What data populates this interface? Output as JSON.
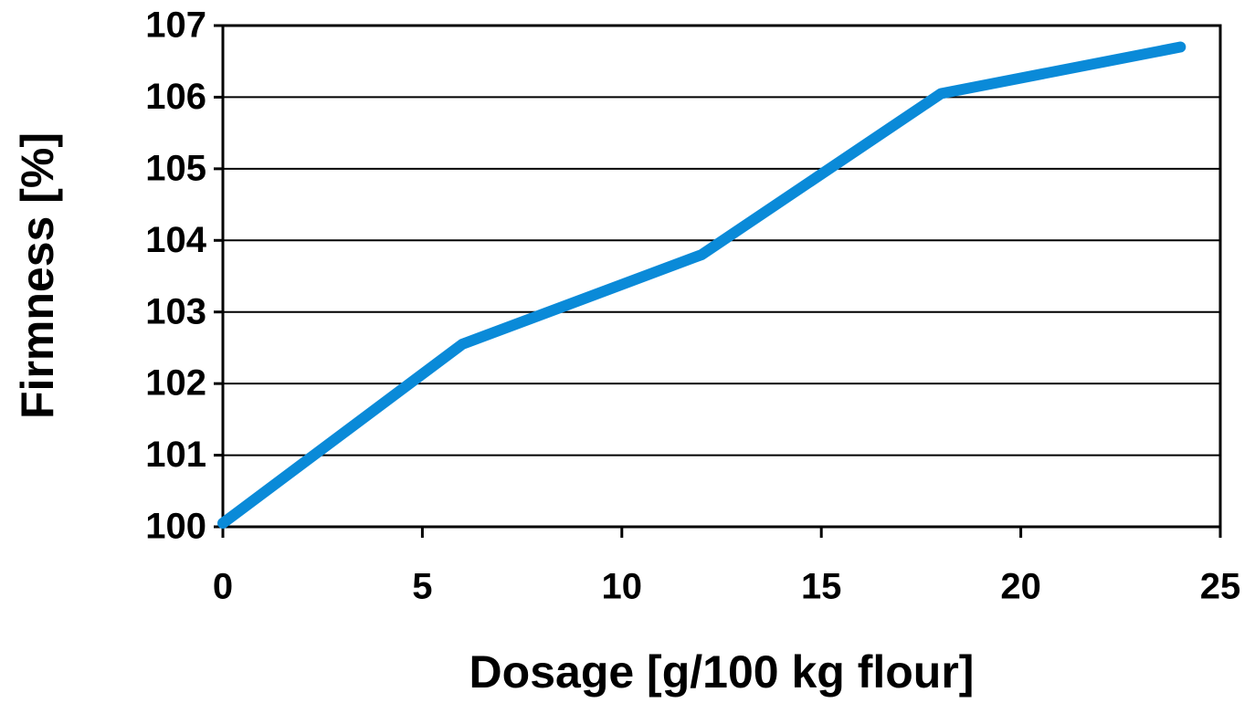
{
  "chart_data": {
    "type": "line",
    "x": [
      0,
      6,
      12,
      18,
      24
    ],
    "series": [
      {
        "name": null,
        "color": "#0a8ad8",
        "values": [
          100.05,
          102.55,
          103.8,
          106.05,
          106.7
        ]
      }
    ],
    "xlim": [
      0,
      25
    ],
    "xticks": [
      0,
      5,
      10,
      15,
      20,
      25
    ],
    "ylim": [
      100,
      107
    ],
    "yticks": [
      100,
      101,
      102,
      103,
      104,
      105,
      106,
      107
    ],
    "xlabel": "Dosage [g/100 kg flour]",
    "ylabel": "Firmness [%]",
    "grid": true
  }
}
